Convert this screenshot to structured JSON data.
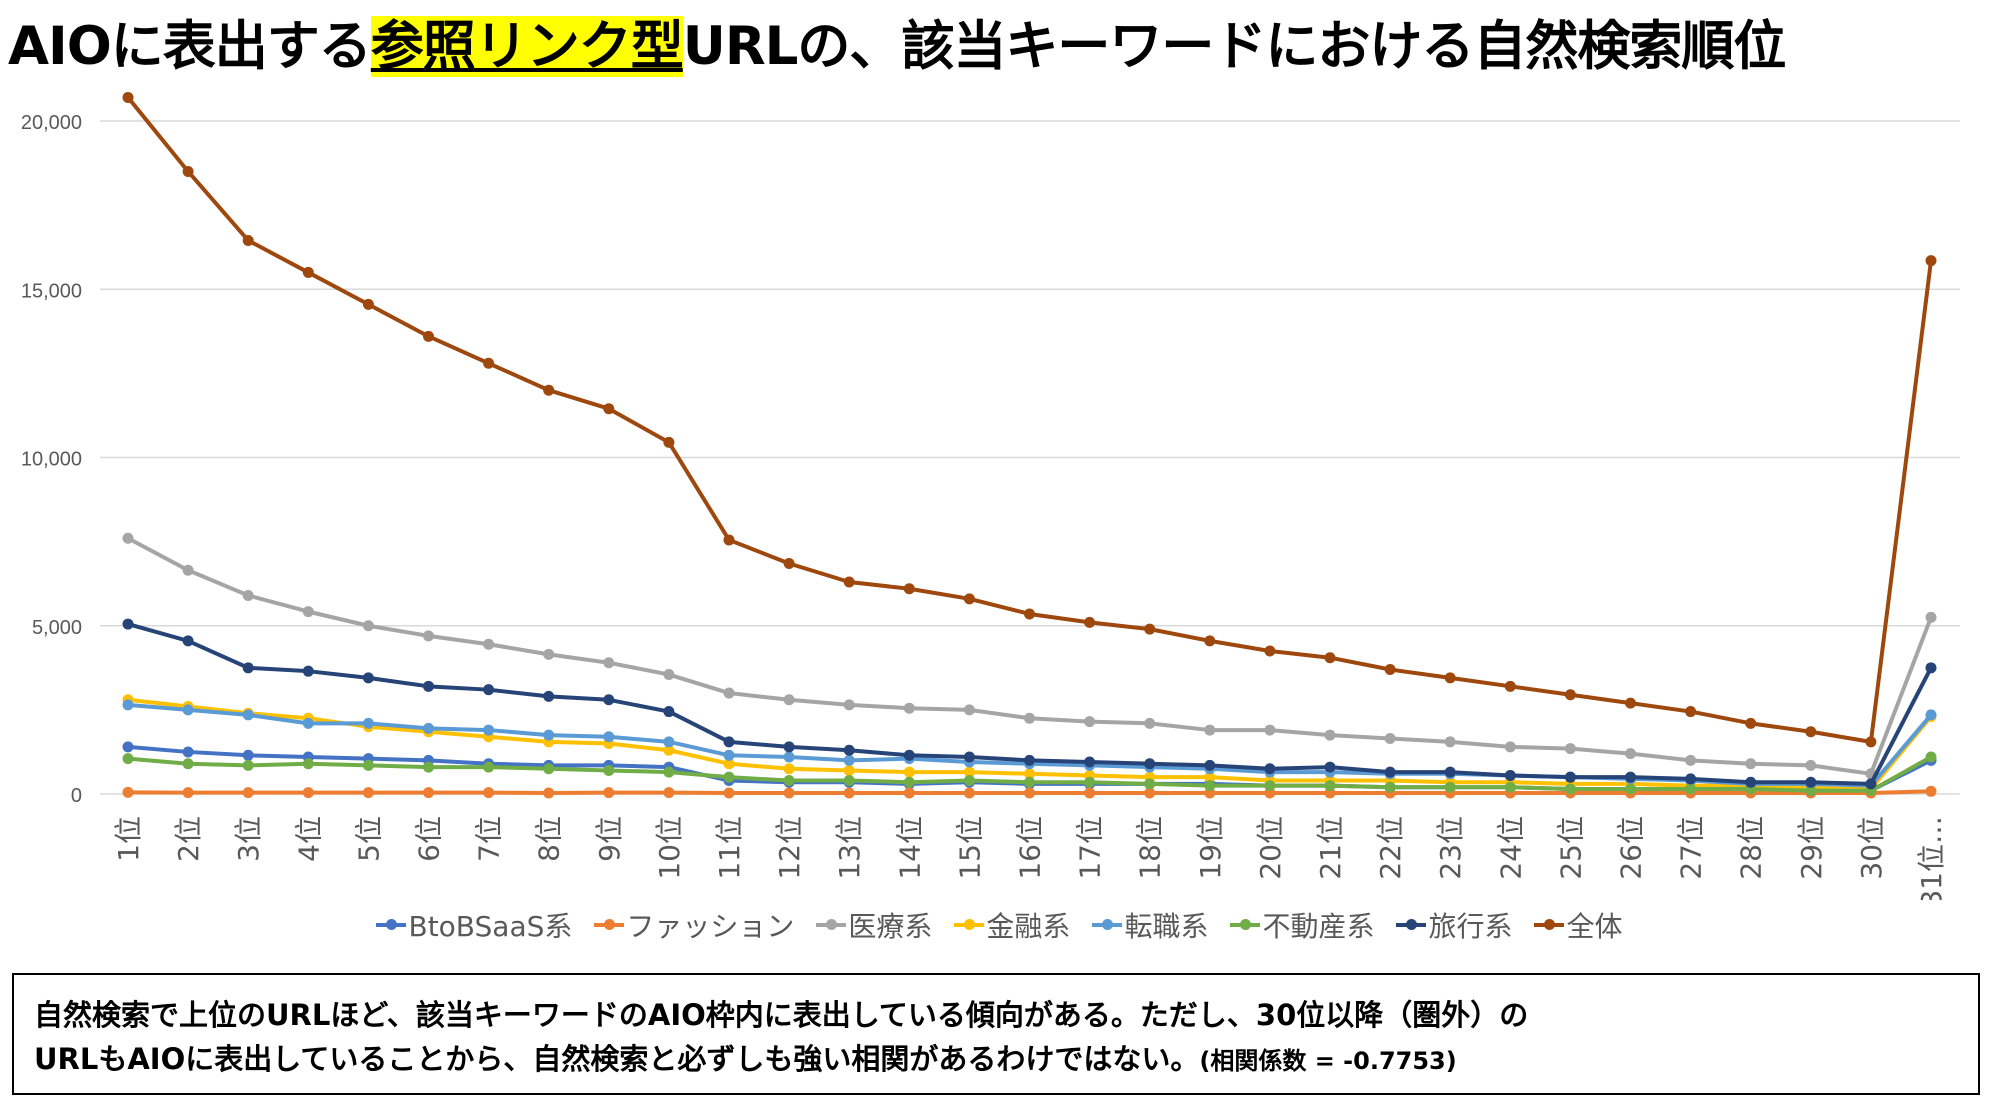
{
  "title": {
    "pre": "AIOに表出する",
    "highlight": "参照リンク型",
    "post": "URLの、該当キーワードにおける自然検索順位"
  },
  "chart_data": {
    "type": "line",
    "categories": [
      "1位",
      "2位",
      "3位",
      "4位",
      "5位",
      "6位",
      "7位",
      "8位",
      "9位",
      "10位",
      "11位",
      "12位",
      "13位",
      "14位",
      "15位",
      "16位",
      "17位",
      "18位",
      "19位",
      "20位",
      "21位",
      "22位",
      "23位",
      "24位",
      "25位",
      "26位",
      "27位",
      "28位",
      "29位",
      "30位",
      "31位…"
    ],
    "ylim": [
      0,
      20000
    ],
    "yticks": [
      0,
      5000,
      10000,
      15000,
      20000
    ],
    "ytick_labels": [
      "0",
      "5,000",
      "10,000",
      "15,000",
      "20,000"
    ],
    "grid": true,
    "legend_position": "bottom",
    "series": [
      {
        "name": "BtoBSaaS系",
        "color": "#4472c4",
        "values": [
          1400,
          1250,
          1150,
          1100,
          1050,
          1000,
          900,
          850,
          850,
          800,
          400,
          350,
          350,
          300,
          350,
          300,
          300,
          300,
          300,
          250,
          250,
          200,
          200,
          200,
          150,
          150,
          150,
          100,
          100,
          100,
          1000
        ]
      },
      {
        "name": "ファッション",
        "color": "#ed7d31",
        "values": [
          50,
          40,
          40,
          40,
          40,
          40,
          40,
          30,
          40,
          40,
          30,
          30,
          30,
          30,
          30,
          30,
          30,
          30,
          30,
          30,
          30,
          30,
          30,
          30,
          30,
          30,
          30,
          30,
          30,
          30,
          80
        ]
      },
      {
        "name": "医療系",
        "color": "#a5a5a5",
        "values": [
          7600,
          6650,
          5900,
          5420,
          5000,
          4700,
          4450,
          4150,
          3900,
          3550,
          3000,
          2800,
          2650,
          2550,
          2500,
          2250,
          2150,
          2100,
          1900,
          1900,
          1750,
          1650,
          1550,
          1400,
          1350,
          1200,
          1000,
          900,
          850,
          600,
          5250
        ]
      },
      {
        "name": "金融系",
        "color": "#ffc000",
        "values": [
          2800,
          2600,
          2400,
          2250,
          2000,
          1850,
          1700,
          1550,
          1500,
          1300,
          900,
          750,
          700,
          650,
          650,
          600,
          550,
          500,
          500,
          400,
          400,
          400,
          350,
          350,
          300,
          300,
          250,
          250,
          200,
          150,
          2300
        ]
      },
      {
        "name": "転職系",
        "color": "#5b9bd5",
        "values": [
          2650,
          2500,
          2350,
          2100,
          2100,
          1950,
          1900,
          1750,
          1700,
          1550,
          1150,
          1100,
          1000,
          1050,
          950,
          900,
          850,
          800,
          750,
          650,
          650,
          600,
          600,
          550,
          500,
          450,
          400,
          300,
          300,
          250,
          2350
        ]
      },
      {
        "name": "不動産系",
        "color": "#70ad47",
        "values": [
          1050,
          900,
          850,
          900,
          850,
          800,
          800,
          750,
          700,
          650,
          500,
          400,
          400,
          350,
          400,
          350,
          350,
          300,
          250,
          250,
          250,
          200,
          200,
          200,
          150,
          150,
          150,
          150,
          100,
          100,
          1100
        ]
      },
      {
        "name": "旅行系",
        "color": "#264478",
        "values": [
          5050,
          4550,
          3750,
          3650,
          3450,
          3200,
          3100,
          2900,
          2800,
          2450,
          1550,
          1400,
          1300,
          1150,
          1100,
          1000,
          950,
          900,
          850,
          750,
          800,
          650,
          650,
          550,
          500,
          500,
          450,
          350,
          350,
          300,
          3750
        ]
      },
      {
        "name": "全体",
        "color": "#9e480e",
        "values": [
          20700,
          18500,
          16450,
          15500,
          14550,
          13600,
          12800,
          12000,
          11450,
          10450,
          7550,
          6850,
          6300,
          6100,
          5800,
          5350,
          5100,
          4900,
          4550,
          4250,
          4050,
          3700,
          3450,
          3200,
          2950,
          2700,
          2450,
          2100,
          1850,
          1550,
          15850
        ]
      }
    ]
  },
  "note": {
    "line1": "自然検索で上位のURLほど、該当キーワードのAIO枠内に表出している傾向がある。ただし、30位以降（圏外）の",
    "line2": "URLもAIOに表出していることから、自然検索と必ずしも強い相関があるわけではない。",
    "corr": "(相関係数 = -0.7753)"
  }
}
